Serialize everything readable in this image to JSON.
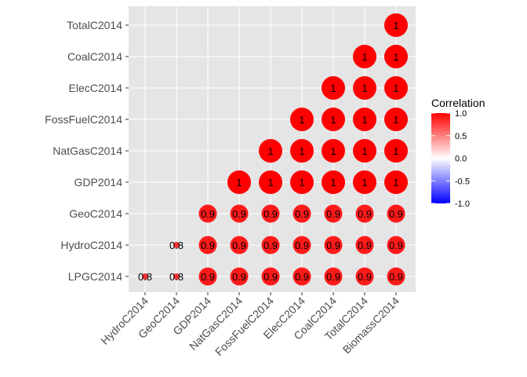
{
  "chart_data": {
    "type": "correlation-matrix",
    "x_categories": [
      "HydroC2014",
      "GeoC2014",
      "GDP2014",
      "NatGasC2014",
      "FossFuelC2014",
      "ElecC2014",
      "CoalC2014",
      "TotalC2014",
      "BiomassC2014"
    ],
    "y_categories": [
      "LPGC2014",
      "HydroC2014",
      "GeoC2014",
      "GDP2014",
      "NatGasC2014",
      "FossFuelC2014",
      "ElecC2014",
      "CoalC2014",
      "TotalC2014"
    ],
    "cells": [
      {
        "x": "HydroC2014",
        "y": "LPGC2014",
        "value": 0.8,
        "label": "0.8"
      },
      {
        "x": "GeoC2014",
        "y": "LPGC2014",
        "value": 0.8,
        "label": "0.8"
      },
      {
        "x": "GDP2014",
        "y": "LPGC2014",
        "value": 0.9,
        "label": "0.9"
      },
      {
        "x": "NatGasC2014",
        "y": "LPGC2014",
        "value": 0.9,
        "label": "0.9"
      },
      {
        "x": "FossFuelC2014",
        "y": "LPGC2014",
        "value": 0.9,
        "label": "0.9"
      },
      {
        "x": "ElecC2014",
        "y": "LPGC2014",
        "value": 0.9,
        "label": "0.9"
      },
      {
        "x": "CoalC2014",
        "y": "LPGC2014",
        "value": 0.9,
        "label": "0.9"
      },
      {
        "x": "TotalC2014",
        "y": "LPGC2014",
        "value": 0.9,
        "label": "0.9"
      },
      {
        "x": "BiomassC2014",
        "y": "LPGC2014",
        "value": 0.9,
        "label": "0.9"
      },
      {
        "x": "GeoC2014",
        "y": "HydroC2014",
        "value": 0.8,
        "label": "0.8"
      },
      {
        "x": "GDP2014",
        "y": "HydroC2014",
        "value": 0.9,
        "label": "0.9"
      },
      {
        "x": "NatGasC2014",
        "y": "HydroC2014",
        "value": 0.9,
        "label": "0.9"
      },
      {
        "x": "FossFuelC2014",
        "y": "HydroC2014",
        "value": 0.9,
        "label": "0.9"
      },
      {
        "x": "ElecC2014",
        "y": "HydroC2014",
        "value": 0.9,
        "label": "0.9"
      },
      {
        "x": "CoalC2014",
        "y": "HydroC2014",
        "value": 0.9,
        "label": "0.9"
      },
      {
        "x": "TotalC2014",
        "y": "HydroC2014",
        "value": 0.9,
        "label": "0.9"
      },
      {
        "x": "BiomassC2014",
        "y": "HydroC2014",
        "value": 0.9,
        "label": "0.9"
      },
      {
        "x": "GDP2014",
        "y": "GeoC2014",
        "value": 0.9,
        "label": "0.9"
      },
      {
        "x": "NatGasC2014",
        "y": "GeoC2014",
        "value": 0.9,
        "label": "0.9"
      },
      {
        "x": "FossFuelC2014",
        "y": "GeoC2014",
        "value": 0.9,
        "label": "0.9"
      },
      {
        "x": "ElecC2014",
        "y": "GeoC2014",
        "value": 0.9,
        "label": "0.9"
      },
      {
        "x": "CoalC2014",
        "y": "GeoC2014",
        "value": 0.9,
        "label": "0.9"
      },
      {
        "x": "TotalC2014",
        "y": "GeoC2014",
        "value": 0.9,
        "label": "0.9"
      },
      {
        "x": "BiomassC2014",
        "y": "GeoC2014",
        "value": 0.9,
        "label": "0.9"
      },
      {
        "x": "NatGasC2014",
        "y": "GDP2014",
        "value": 1.0,
        "label": "1"
      },
      {
        "x": "FossFuelC2014",
        "y": "GDP2014",
        "value": 1.0,
        "label": "1"
      },
      {
        "x": "ElecC2014",
        "y": "GDP2014",
        "value": 1.0,
        "label": "1"
      },
      {
        "x": "CoalC2014",
        "y": "GDP2014",
        "value": 1.0,
        "label": "1"
      },
      {
        "x": "TotalC2014",
        "y": "GDP2014",
        "value": 1.0,
        "label": "1"
      },
      {
        "x": "BiomassC2014",
        "y": "GDP2014",
        "value": 1.0,
        "label": "1"
      },
      {
        "x": "FossFuelC2014",
        "y": "NatGasC2014",
        "value": 1.0,
        "label": "1"
      },
      {
        "x": "ElecC2014",
        "y": "NatGasC2014",
        "value": 1.0,
        "label": "1"
      },
      {
        "x": "CoalC2014",
        "y": "NatGasC2014",
        "value": 1.0,
        "label": "1"
      },
      {
        "x": "TotalC2014",
        "y": "NatGasC2014",
        "value": 1.0,
        "label": "1"
      },
      {
        "x": "BiomassC2014",
        "y": "NatGasC2014",
        "value": 1.0,
        "label": "1"
      },
      {
        "x": "ElecC2014",
        "y": "FossFuelC2014",
        "value": 1.0,
        "label": "1"
      },
      {
        "x": "CoalC2014",
        "y": "FossFuelC2014",
        "value": 1.0,
        "label": "1"
      },
      {
        "x": "TotalC2014",
        "y": "FossFuelC2014",
        "value": 1.0,
        "label": "1"
      },
      {
        "x": "BiomassC2014",
        "y": "FossFuelC2014",
        "value": 1.0,
        "label": "1"
      },
      {
        "x": "CoalC2014",
        "y": "ElecC2014",
        "value": 1.0,
        "label": "1"
      },
      {
        "x": "TotalC2014",
        "y": "ElecC2014",
        "value": 1.0,
        "label": "1"
      },
      {
        "x": "BiomassC2014",
        "y": "ElecC2014",
        "value": 1.0,
        "label": "1"
      },
      {
        "x": "TotalC2014",
        "y": "CoalC2014",
        "value": 1.0,
        "label": "1"
      },
      {
        "x": "BiomassC2014",
        "y": "CoalC2014",
        "value": 1.0,
        "label": "1"
      },
      {
        "x": "BiomassC2014",
        "y": "TotalC2014",
        "value": 1.0,
        "label": "1"
      }
    ],
    "legend": {
      "title": "Correlation",
      "ticks": [
        "1.0",
        "0.5",
        "0.0",
        "-0.5",
        "-1.0"
      ],
      "range": [
        -1,
        1
      ],
      "placement": "right"
    },
    "colors": {
      "panel_bg": "#e5e5e5",
      "grid": "#ffffff",
      "high": "#ff0000",
      "mid": "#ffffff",
      "low": "#0000ff"
    },
    "grid": true
  }
}
